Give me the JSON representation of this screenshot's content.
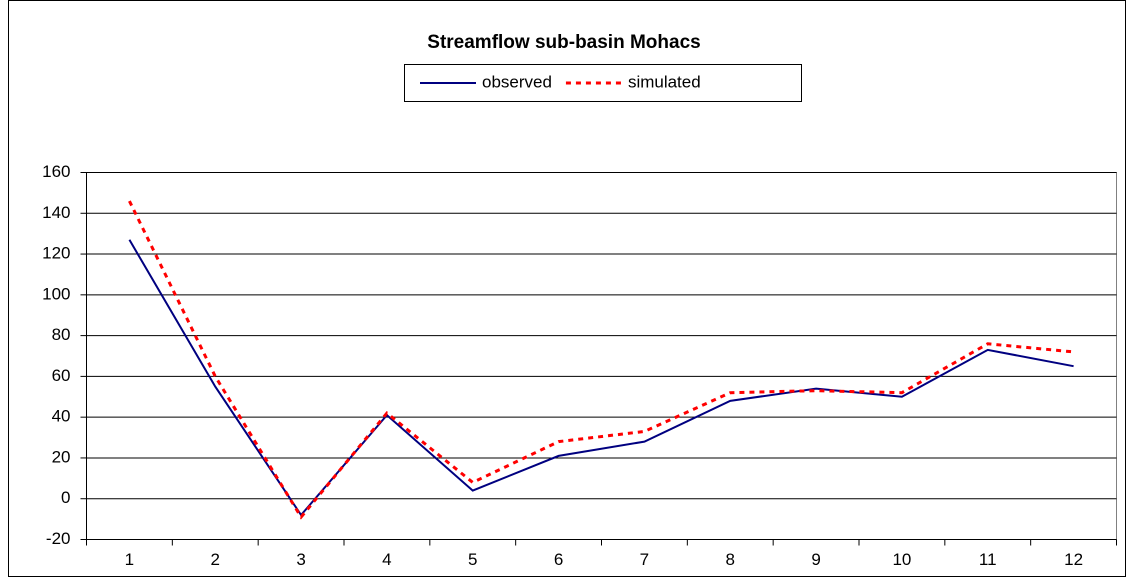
{
  "chart_data": {
    "type": "line",
    "title": "Streamflow sub-basin Mohacs",
    "categories": [
      "1",
      "2",
      "3",
      "4",
      "5",
      "6",
      "7",
      "8",
      "9",
      "10",
      "11",
      "12"
    ],
    "series": [
      {
        "name": "observed",
        "color": "#000080",
        "dash": false,
        "values": [
          127,
          55,
          -8,
          41,
          4,
          21,
          28,
          48,
          54,
          50,
          73,
          65
        ]
      },
      {
        "name": "simulated",
        "color": "#ff0000",
        "dash": true,
        "values": [
          146,
          60,
          -9,
          42,
          8,
          28,
          33,
          52,
          53,
          52,
          76,
          72
        ]
      }
    ],
    "ylim": [
      -20,
      160
    ],
    "yticks": [
      -20,
      0,
      20,
      40,
      60,
      80,
      100,
      120,
      140,
      160
    ],
    "grid": true,
    "legend": "top"
  }
}
